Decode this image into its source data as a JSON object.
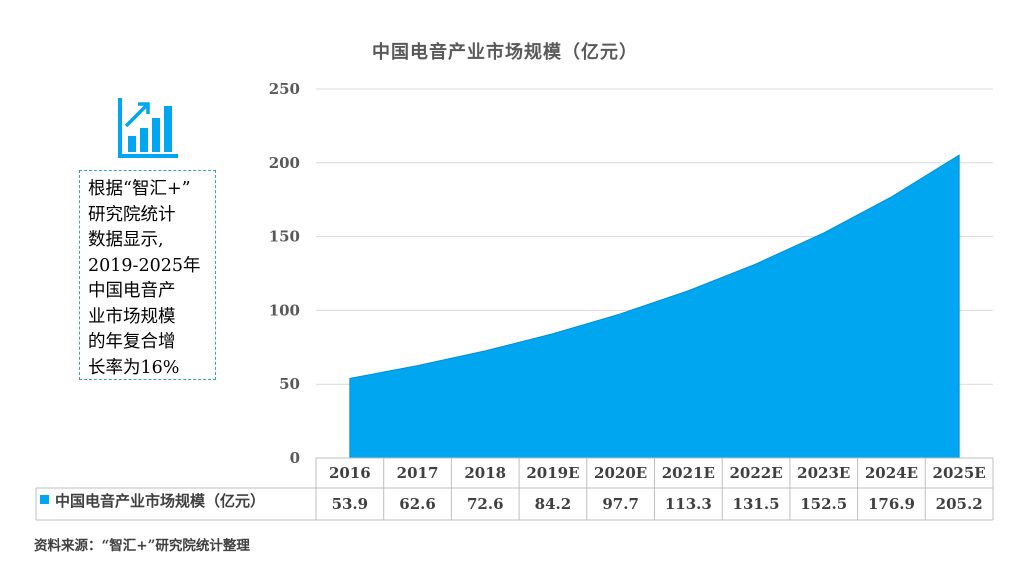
{
  "chart_data": {
    "type": "area",
    "title": "中国电音产业市场规模（亿元）",
    "categories": [
      "2016",
      "2017",
      "2018",
      "2019E",
      "2020E",
      "2021E",
      "2022E",
      "2023E",
      "2024E",
      "2025E"
    ],
    "series": [
      {
        "name": "中国电音产业市场规模（亿元）",
        "values": [
          53.9,
          62.6,
          72.6,
          84.2,
          97.7,
          113.3,
          131.5,
          152.5,
          176.9,
          205.2
        ]
      }
    ],
    "value_labels": [
      "53.9",
      "62.6",
      "72.6",
      "84.2",
      "97.7",
      "113.3",
      "131.5",
      "152.5",
      "176.9",
      "205.2"
    ],
    "ylim": [
      0,
      250
    ],
    "yticks": [
      "0",
      "50",
      "100",
      "150",
      "200",
      "250"
    ],
    "grid": true,
    "data_table": true,
    "colors": {
      "area": "#00a6f0",
      "grid": "#d9d9d9",
      "table_border": "#bfbfbf"
    }
  },
  "note": {
    "icon": "growth-chart-icon",
    "lines": [
      "根据“智汇+”",
      "研究院统计",
      "数据显示,",
      "2019-2025年",
      "中国电音产",
      "业市场规模",
      "的年复合增",
      "长率为16%"
    ]
  },
  "source": "资料来源：“智汇+”研究院统计整理"
}
